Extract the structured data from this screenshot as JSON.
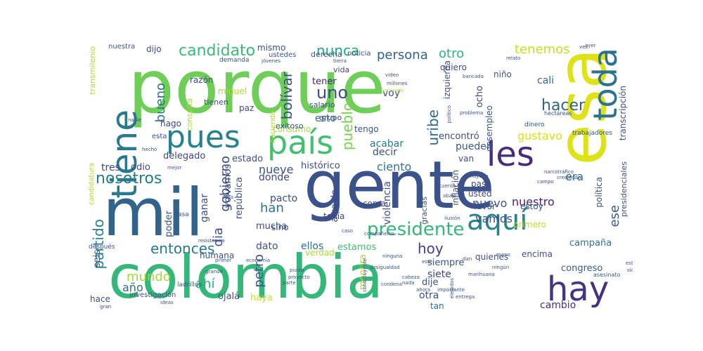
{
  "colors": {
    "green": "#5ec962",
    "bright_green": "#7ad151",
    "teal_green": "#3fbc73",
    "teal": "#21918c",
    "blue_teal": "#2c728e",
    "blue": "#3b528b",
    "indigo": "#46327e",
    "purple": "#440154",
    "yellow": "#fde725",
    "yellow_green": "#b5de2b",
    "sea": "#28ae80"
  },
  "words": [
    {
      "text": "porque",
      "color": "#6ece58"
    },
    {
      "text": "gente",
      "color": "#3b528b"
    },
    {
      "text": "colombia",
      "color": "#35b779"
    },
    {
      "text": "mil",
      "color": "#33638d"
    },
    {
      "text": "esa",
      "color": "#dde318"
    },
    {
      "text": "país",
      "color": "#44bf70"
    },
    {
      "text": "pues",
      "color": "#26818e"
    },
    {
      "text": "tiene",
      "color": "#2a788e"
    },
    {
      "text": "les",
      "color": "#472c7a"
    },
    {
      "text": "toda",
      "color": "#2c728e"
    },
    {
      "text": "hay",
      "color": "#46337f"
    },
    {
      "text": "aquí",
      "color": "#25848e"
    },
    {
      "text": "presidente",
      "color": "#35b779"
    },
    {
      "text": "candidato",
      "color": "#3aba76"
    },
    {
      "text": "nosotros",
      "color": "#287c8e"
    },
    {
      "text": "entonces",
      "color": "#2a768e"
    },
    {
      "text": "hacer",
      "color": "#32658e"
    },
    {
      "text": "uno",
      "color": "#3e4a89"
    },
    {
      "text": "nunca",
      "color": "#22a785"
    },
    {
      "text": "persona",
      "color": "#33638d"
    },
    {
      "text": "tenemos",
      "color": "#c2df23"
    },
    {
      "text": "otro",
      "color": "#2eb37c"
    },
    {
      "text": "bolívar",
      "color": "#3d4d8a"
    },
    {
      "text": "bueno",
      "color": "#2d708e"
    },
    {
      "text": "uribe",
      "color": "#306a8e"
    },
    {
      "text": "pueblo",
      "color": "#7ad151"
    },
    {
      "text": "partido",
      "color": "#287d8e"
    },
    {
      "text": "hoy",
      "color": "#424086"
    },
    {
      "text": "mundo",
      "color": "#a2da37"
    },
    {
      "text": "ciento",
      "color": "#2a788e"
    },
    {
      "text": "gobierno",
      "color": "#3e4989"
    },
    {
      "text": "dia",
      "color": "#3e4c8a"
    },
    {
      "text": "han",
      "color": "#2c738e"
    },
    {
      "text": "vamos",
      "color": "#3c508b"
    },
    {
      "text": "nuevo",
      "color": "#3b528b"
    },
    {
      "text": "nueve",
      "color": "#3b528b"
    },
    {
      "text": "nuestro",
      "color": "#482576"
    },
    {
      "text": "era",
      "color": "#2e6e8e"
    },
    {
      "text": "ese",
      "color": "#38588c"
    },
    {
      "text": "gustavo",
      "color": "#d8e219"
    },
    {
      "text": "tres",
      "color": "#3e4a89"
    },
    {
      "text": "decir",
      "color": "#3c4f8a"
    },
    {
      "text": "pueden",
      "color": "#38598c"
    },
    {
      "text": "acabar",
      "color": "#2a788e"
    },
    {
      "text": "histórico",
      "color": "#3c4f8a"
    },
    {
      "text": "estado",
      "color": "#3b528b"
    },
    {
      "text": "odio",
      "color": "#3e4989"
    },
    {
      "text": "delegado",
      "color": "#3f4788"
    },
    {
      "text": "año",
      "color": "#2e6e8e"
    },
    {
      "text": "ahí",
      "color": "#2db27d"
    },
    {
      "text": "petro",
      "color": "#38598c"
    },
    {
      "text": "dato",
      "color": "#3a548c"
    },
    {
      "text": "ellos",
      "color": "#2e6f8e"
    },
    {
      "text": "estamos",
      "color": "#3fbc73"
    },
    {
      "text": "seis",
      "color": "#3b518b"
    },
    {
      "text": "siete",
      "color": "#3f4788"
    },
    {
      "text": "dije",
      "color": "#3b528b"
    },
    {
      "text": "otra",
      "color": "#3d4e8a"
    },
    {
      "text": "cambio",
      "color": "#46337f"
    },
    {
      "text": "congreso",
      "color": "#365d8d"
    },
    {
      "text": "campaña",
      "color": "#2c738e"
    },
    {
      "text": "esto",
      "color": "#2d718e"
    },
    {
      "text": "voy",
      "color": "#3e4a89"
    },
    {
      "text": "tener",
      "color": "#481f70"
    },
    {
      "text": "cali",
      "color": "#33638d"
    },
    {
      "text": "mismo",
      "color": "#3b528b"
    },
    {
      "text": "dijo",
      "color": "#3e4989"
    },
    {
      "text": "miguel",
      "color": "#a8db34"
    },
    {
      "text": "paz",
      "color": "#3f4889"
    },
    {
      "text": "tienen",
      "color": "#3e4a89"
    },
    {
      "text": "razón",
      "color": "#3f4788"
    },
    {
      "text": "hago",
      "color": "#414487"
    },
    {
      "text": "ganar",
      "color": "#3d4e8a"
    },
    {
      "text": "poder",
      "color": "#3b528b"
    },
    {
      "text": "donde",
      "color": "#3e4a89"
    },
    {
      "text": "pacto",
      "color": "#3d4e8a"
    },
    {
      "text": "mucha",
      "color": "#3e4a89"
    },
    {
      "text": "sino",
      "color": "#3b528b"
    },
    {
      "text": "coma",
      "color": "#3f4889"
    },
    {
      "text": "tenía",
      "color": "#3e4a89"
    },
    {
      "text": "verdad",
      "color": "#a8db34"
    },
    {
      "text": "siempre",
      "color": "#3b528b"
    },
    {
      "text": "tan",
      "color": "#2c728e"
    },
    {
      "text": "ojalá",
      "color": "#3d4e8a"
    },
    {
      "text": "haya",
      "color": "#c2df23"
    },
    {
      "text": "hace",
      "color": "#3b528b"
    },
    {
      "text": "humana",
      "color": "#3b528b"
    },
    {
      "text": "encima",
      "color": "#3b528b"
    },
    {
      "text": "quienes",
      "color": "#3b528b"
    },
    {
      "text": "primero",
      "color": "#c2df23"
    },
    {
      "text": "favor",
      "color": "#3e4a89"
    },
    {
      "text": "estoy",
      "color": "#3b528b"
    },
    {
      "text": "usted",
      "color": "#3e4a89"
    },
    {
      "text": "pasó",
      "color": "#3e4a89"
    },
    {
      "text": "van",
      "color": "#3d4e8a"
    },
    {
      "text": "gracias",
      "color": "#3d4e8a"
    },
    {
      "text": "violencia",
      "color": "#3b528b"
    },
    {
      "text": "alcalde",
      "color": "#3e4a89"
    },
    {
      "text": "república",
      "color": "#3b528b"
    },
    {
      "text": "volvamos",
      "color": "#3b528b"
    },
    {
      "text": "mentira",
      "color": "#a8db34"
    },
    {
      "text": "salario",
      "color": "#3e4a89"
    },
    {
      "text": "grupo",
      "color": "#3e4a89"
    },
    {
      "text": "vida",
      "color": "#3e4a89"
    },
    {
      "text": "consumo",
      "color": "#a8db34"
    },
    {
      "text": "tengo",
      "color": "#3b528b"
    },
    {
      "text": "encontró",
      "color": "#3e4a89"
    },
    {
      "text": "exitoso",
      "color": "#3b528b"
    },
    {
      "text": "desempleo",
      "color": "#3b528b"
    },
    {
      "text": "quiero",
      "color": "#3e4a89"
    },
    {
      "text": "ocho",
      "color": "#3e4a89"
    },
    {
      "text": "niño",
      "color": "#3b528b"
    },
    {
      "text": "izquierda",
      "color": "#3b528b"
    },
    {
      "text": "inflación",
      "color": "#3b528b"
    },
    {
      "text": "transcripción",
      "color": "#3b528b"
    },
    {
      "text": "política",
      "color": "#3b528b"
    },
    {
      "text": "presidenciales",
      "color": "#3b528b"
    },
    {
      "text": "consulta",
      "color": "#a8db34"
    },
    {
      "text": "transmilenio",
      "color": "#a8db34"
    },
    {
      "text": "candidatura",
      "color": "#a8db34"
    },
    {
      "text": "nuestra",
      "color": "#3b528b"
    },
    {
      "text": "derecha",
      "color": "#3b528b"
    },
    {
      "text": "noticia",
      "color": "#3b528b"
    },
    {
      "text": "ustedes",
      "color": "#3b528b"
    },
    {
      "text": "esta",
      "color": "#3b528b"
    },
    {
      "text": "haciendo",
      "color": "#a8db34"
    },
    {
      "text": "investigación",
      "color": "#3b528b"
    },
    {
      "text": "ladrillos",
      "color": "#3b528b"
    },
    {
      "text": "trabajadores",
      "color": "#3b528b"
    },
    {
      "text": "dinero",
      "color": "#3b528b"
    },
    {
      "text": "hectáreas",
      "color": "#3b528b"
    },
    {
      "text": "asesinato",
      "color": "#3b528b"
    },
    {
      "text": "después",
      "color": "#3b528b"
    },
    {
      "text": "casa",
      "color": "#3b528b"
    },
    {
      "text": "demanda",
      "color": "#3b528b"
    },
    {
      "text": "colorado",
      "color": "#a8db34"
    },
    {
      "text": "cosa",
      "color": "#3b528b"
    },
    {
      "text": "ninguna",
      "color": "#3b528b"
    },
    {
      "text": "problema",
      "color": "#3b528b"
    },
    {
      "text": "político",
      "color": "#3b528b"
    },
    {
      "text": "mejor",
      "color": "#3b528b"
    },
    {
      "text": "grande",
      "color": "#3b528b"
    },
    {
      "text": "primer",
      "color": "#3b528b"
    },
    {
      "text": "gran",
      "color": "#3b528b"
    },
    {
      "text": "ideas",
      "color": "#3b528b"
    },
    {
      "text": "ningún",
      "color": "#3b528b"
    },
    {
      "text": "marihuana",
      "color": "#3b528b"
    },
    {
      "text": "creciendo",
      "color": "#3b528b"
    },
    {
      "text": "narcotráfico",
      "color": "#3b528b"
    },
    {
      "text": "sido",
      "color": "#3b528b"
    },
    {
      "text": "está",
      "color": "#3b528b"
    },
    {
      "text": "este",
      "color": "#3b528b"
    },
    {
      "text": "millones",
      "color": "#3b528b"
    },
    {
      "text": "jóvenes",
      "color": "#3b528b"
    },
    {
      "text": "tierra",
      "color": "#3b528b"
    },
    {
      "text": "video",
      "color": "#3b528b"
    },
    {
      "text": "punto",
      "color": "#3b528b"
    },
    {
      "text": "proyecto",
      "color": "#3b528b"
    },
    {
      "text": "economía",
      "color": "#3b528b"
    },
    {
      "text": "condena",
      "color": "#3b528b"
    },
    {
      "text": "nada",
      "color": "#3b528b"
    },
    {
      "text": "entrega",
      "color": "#3b528b"
    },
    {
      "text": "acuerdo",
      "color": "#3b528b"
    },
    {
      "text": "cabeza",
      "color": "#3b528b"
    },
    {
      "text": "ahora",
      "color": "#3b528b"
    },
    {
      "text": "importante",
      "color": "#3b528b"
    },
    {
      "text": "resistencia",
      "color": "#3b528b"
    },
    {
      "text": "mayoría",
      "color": "#3b528b"
    },
    {
      "text": "hecho",
      "color": "#3b528b"
    },
    {
      "text": "nadie",
      "color": "#3b528b"
    },
    {
      "text": "ayer",
      "color": "#3b528b"
    },
    {
      "text": "relato",
      "color": "#3b528b"
    },
    {
      "text": "desigualdad",
      "color": "#3b528b"
    },
    {
      "text": "compañeros",
      "color": "#3b528b"
    },
    {
      "text": "constituyente",
      "color": "#3b528b"
    },
    {
      "text": "elegidos",
      "color": "#3b528b"
    },
    {
      "text": "parte",
      "color": "#3b528b"
    },
    {
      "text": "abajo",
      "color": "#3b528b"
    },
    {
      "text": "ilusión",
      "color": "#3b528b"
    },
    {
      "text": "campo",
      "color": "#3b528b"
    },
    {
      "text": "bancada",
      "color": "#3b528b"
    },
    {
      "text": "mano",
      "color": "#3b528b"
    },
    {
      "text": "vez",
      "color": "#3b528b"
    },
    {
      "text": "dan",
      "color": "#3b528b"
    },
    {
      "text": "caso",
      "color": "#3b528b"
    }
  ]
}
